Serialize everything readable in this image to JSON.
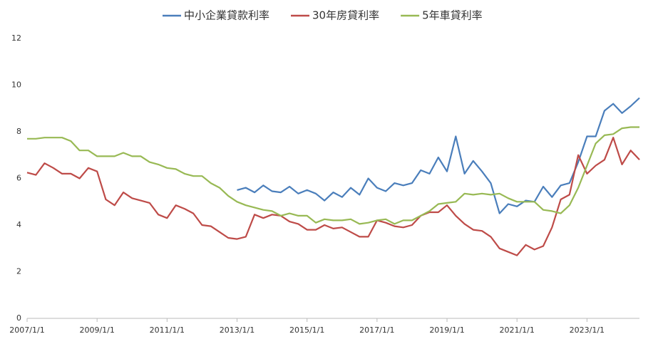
{
  "chart_data": {
    "type": "line",
    "x": [
      "2007/1/1",
      "2007/4/1",
      "2007/7/1",
      "2007/10/1",
      "2008/1/1",
      "2008/4/1",
      "2008/7/1",
      "2008/10/1",
      "2009/1/1",
      "2009/4/1",
      "2009/7/1",
      "2009/10/1",
      "2010/1/1",
      "2010/4/1",
      "2010/7/1",
      "2010/10/1",
      "2011/1/1",
      "2011/4/1",
      "2011/7/1",
      "2011/10/1",
      "2012/1/1",
      "2012/4/1",
      "2012/7/1",
      "2012/10/1",
      "2013/1/1",
      "2013/4/1",
      "2013/7/1",
      "2013/10/1",
      "2014/1/1",
      "2014/4/1",
      "2014/7/1",
      "2014/10/1",
      "2015/1/1",
      "2015/4/1",
      "2015/7/1",
      "2015/10/1",
      "2016/1/1",
      "2016/4/1",
      "2016/7/1",
      "2016/10/1",
      "2017/1/1",
      "2017/4/1",
      "2017/7/1",
      "2017/10/1",
      "2018/1/1",
      "2018/4/1",
      "2018/7/1",
      "2018/10/1",
      "2019/1/1",
      "2019/4/1",
      "2019/7/1",
      "2019/10/1",
      "2020/1/1",
      "2020/4/1",
      "2020/7/1",
      "2020/10/1",
      "2021/1/1",
      "2021/4/1",
      "2021/7/1",
      "2021/10/1",
      "2022/1/1",
      "2022/4/1",
      "2022/7/1",
      "2022/10/1",
      "2023/1/1",
      "2023/4/1",
      "2023/7/1",
      "2023/10/1",
      "2024/1/1",
      "2024/4/1",
      "2024/7/1"
    ],
    "series": [
      {
        "name": "中小企業貸款利率",
        "color": "#4a7ebb",
        "values": [
          null,
          null,
          null,
          null,
          null,
          null,
          null,
          null,
          null,
          null,
          null,
          null,
          null,
          null,
          null,
          null,
          null,
          null,
          null,
          null,
          null,
          null,
          null,
          null,
          5.5,
          5.6,
          5.4,
          5.7,
          5.45,
          5.4,
          5.65,
          5.35,
          5.5,
          5.35,
          5.05,
          5.4,
          5.2,
          5.6,
          5.3,
          6.0,
          5.6,
          5.45,
          5.8,
          5.7,
          5.8,
          6.35,
          6.2,
          6.9,
          6.3,
          7.8,
          6.2,
          6.75,
          6.3,
          5.8,
          4.5,
          4.9,
          4.8,
          5.05,
          5.0,
          5.65,
          5.2,
          5.7,
          5.8,
          6.7,
          7.8,
          7.8,
          8.9,
          9.2,
          8.8,
          9.1,
          9.45
        ]
      },
      {
        "name": "30年房貸利率",
        "color": "#be4b48",
        "values": [
          6.25,
          6.15,
          6.65,
          6.45,
          6.2,
          6.2,
          6.0,
          6.45,
          6.3,
          5.1,
          4.85,
          5.4,
          5.15,
          5.05,
          4.95,
          4.45,
          4.3,
          4.85,
          4.7,
          4.5,
          4.0,
          3.95,
          3.7,
          3.45,
          3.4,
          3.5,
          4.45,
          4.3,
          4.45,
          4.4,
          4.15,
          4.05,
          3.8,
          3.8,
          4.0,
          3.85,
          3.9,
          3.7,
          3.5,
          3.5,
          4.2,
          4.1,
          3.95,
          3.9,
          4.0,
          4.4,
          4.55,
          4.55,
          4.85,
          4.4,
          4.05,
          3.8,
          3.75,
          3.5,
          3.0,
          2.85,
          2.7,
          3.15,
          2.95,
          3.1,
          3.9,
          5.1,
          5.3,
          7.0,
          6.2,
          6.55,
          6.8,
          7.75,
          6.6,
          7.2,
          6.8
        ]
      },
      {
        "name": "5年車貸利率",
        "color": "#98b954",
        "values": [
          7.7,
          7.7,
          7.75,
          7.75,
          7.75,
          7.6,
          7.2,
          7.2,
          6.95,
          6.95,
          6.95,
          7.1,
          6.95,
          6.95,
          6.7,
          6.6,
          6.45,
          6.4,
          6.2,
          6.1,
          6.1,
          5.8,
          5.6,
          5.25,
          5.0,
          4.85,
          4.75,
          4.65,
          4.6,
          4.4,
          4.5,
          4.4,
          4.4,
          4.1,
          4.25,
          4.2,
          4.2,
          4.25,
          4.05,
          4.1,
          4.2,
          4.25,
          4.05,
          4.2,
          4.2,
          4.4,
          4.6,
          4.9,
          4.95,
          5.0,
          5.35,
          5.3,
          5.35,
          5.3,
          5.35,
          5.15,
          5.0,
          5.0,
          5.0,
          4.65,
          4.6,
          4.5,
          4.85,
          5.6,
          6.55,
          7.5,
          7.85,
          7.9,
          8.15,
          8.2,
          8.2
        ]
      }
    ],
    "xlim": [
      "2007/1/1",
      "2024/7/1"
    ],
    "xticks": [
      "2007/1/1",
      "2009/1/1",
      "2011/1/1",
      "2013/1/1",
      "2015/1/1",
      "2017/1/1",
      "2019/1/1",
      "2021/1/1",
      "2023/1/1"
    ],
    "ylim": [
      0,
      12
    ],
    "yticks": [
      0,
      2,
      4,
      6,
      8,
      10,
      12
    ],
    "legend": "top"
  }
}
